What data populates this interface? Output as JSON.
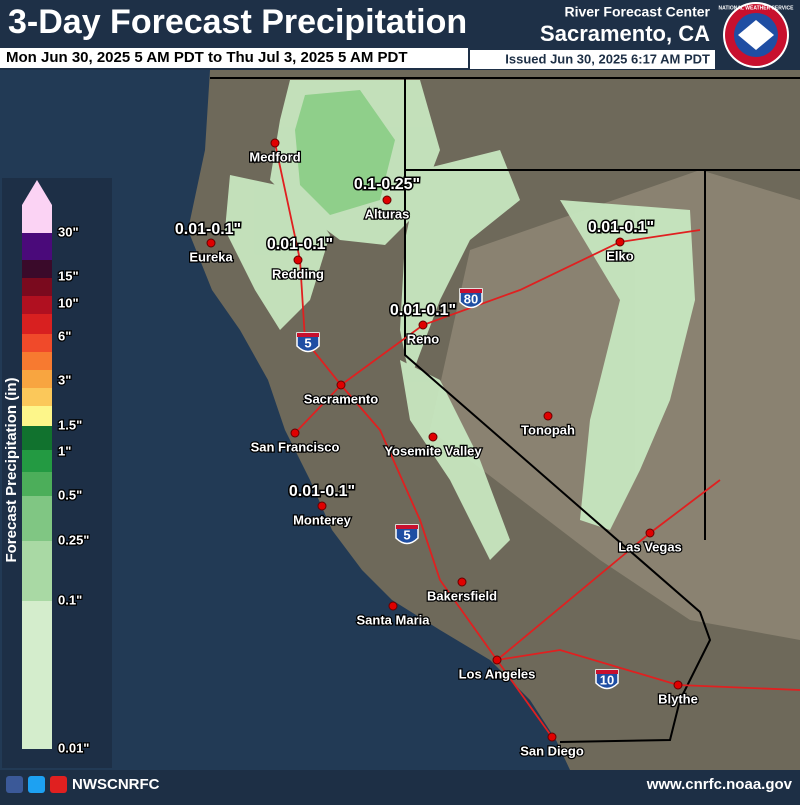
{
  "header": {
    "title": "3-Day Forecast Precipitation",
    "subtitle": "Mon Jun 30, 2025 5 AM PDT to Thu Jul 3, 2025 5 AM PDT",
    "center_label": "River Forecast Center",
    "center_name": "Sacramento, CA",
    "issued": "Issued Jun 30, 2025 6:17 AM PDT"
  },
  "logo": "NATIONAL WEATHER SERVICE",
  "legend": {
    "title": "Forecast Precipitation (in)",
    "labels": [
      "30\"",
      "15\"",
      "10\"",
      "6\"",
      "3\"",
      "1.5\"",
      "1\"",
      "0.5\"",
      "0.25\"",
      "0.1\"",
      "0.01\""
    ]
  },
  "cities": [
    "Medford",
    "Alturas",
    "Eureka",
    "Redding",
    "Elko",
    "Reno",
    "Sacramento",
    "San Francisco",
    "Yosemite Valley",
    "Tonopah",
    "Monterey",
    "Las Vegas",
    "Bakersfield",
    "Santa Maria",
    "Los Angeles",
    "Blythe",
    "San Diego"
  ],
  "amounts": [
    "0.1-0.25\"",
    "0.01-0.1\"",
    "0.01-0.1\"",
    "0.01-0.1\"",
    "0.01-0.1\"",
    "0.01-0.1\""
  ],
  "highways": [
    "5",
    "80",
    "5",
    "10"
  ],
  "footer": {
    "social": "NWSCNRFC",
    "url": "www.cnrfc.noaa.gov"
  }
}
